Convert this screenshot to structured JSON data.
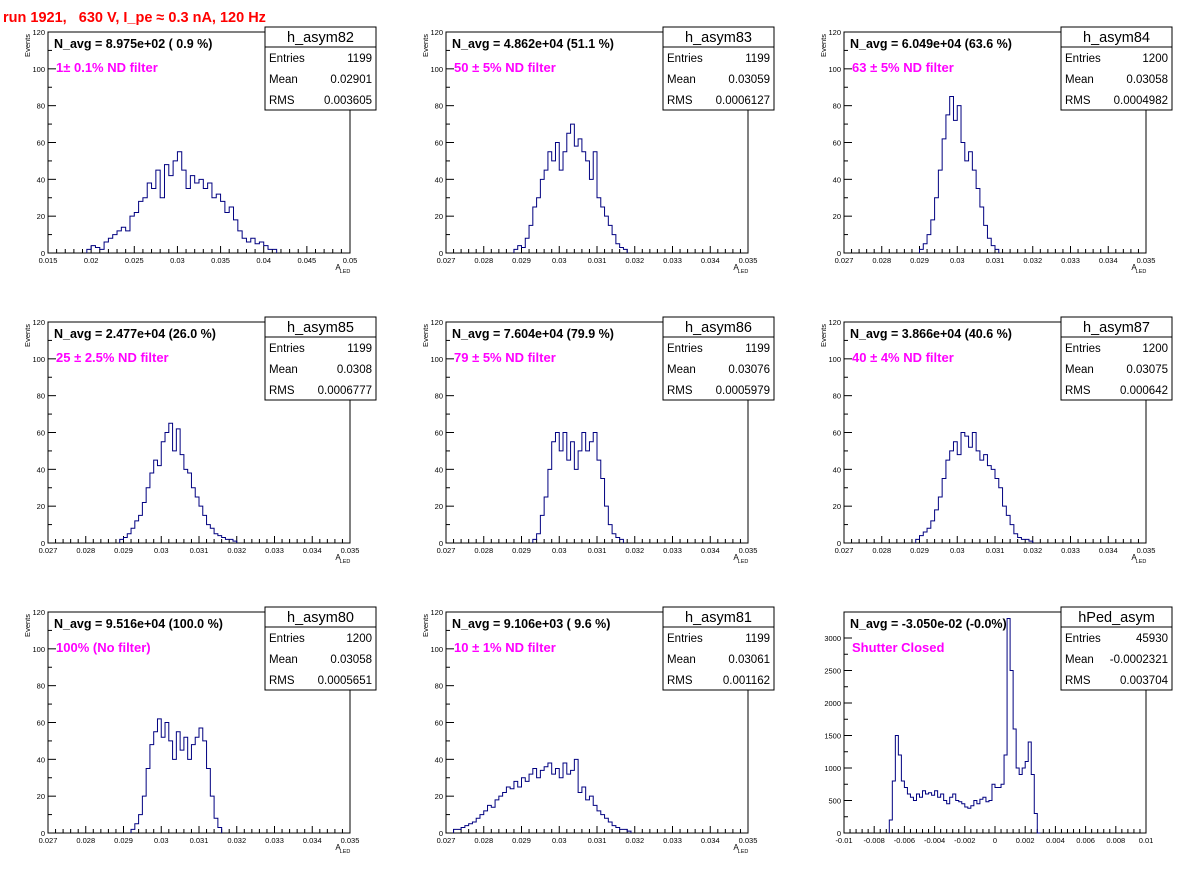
{
  "header": {
    "title": "run 1921,   630 V, I_pe ≈ 0.3 nA, 120 Hz"
  },
  "chart_data": [
    {
      "type": "bar",
      "name": "h_asym82",
      "nlabel": "N_avg = 8.975e+02 ( 0.9 %)",
      "filter": "1± 0.1% ND filter",
      "stats": [
        {
          "k": "Entries",
          "v": "1199"
        },
        {
          "k": "Mean",
          "v": "0.02901"
        },
        {
          "k": "RMS",
          "v": "0.003605"
        }
      ],
      "ylabel": "Events",
      "xlabel": "A",
      "xlabel_sub": "LED",
      "xlim": [
        0.015,
        0.05
      ],
      "ylim": [
        0,
        120
      ],
      "xticks": [
        0.015,
        0.02,
        0.025,
        0.03,
        0.035,
        0.04,
        0.045,
        0.05
      ],
      "xticklabels": [
        "0.015",
        "0.02",
        "0.025",
        "0.03",
        "0.035",
        "0.04",
        "0.045",
        "0.05"
      ],
      "yticks": [
        0,
        20,
        40,
        60,
        80,
        100,
        120
      ],
      "yticklabels": [
        "0",
        "20",
        "40",
        "60",
        "80",
        "100",
        "120"
      ],
      "bin_start": 0.0195,
      "bin_width": 0.0005,
      "values": [
        2,
        4,
        3,
        2,
        6,
        8,
        10,
        12,
        14,
        12,
        20,
        22,
        28,
        30,
        38,
        35,
        45,
        30,
        48,
        42,
        50,
        55,
        45,
        35,
        42,
        38,
        40,
        35,
        38,
        30,
        32,
        28,
        22,
        25,
        18,
        12,
        8,
        6,
        8,
        5,
        6,
        4,
        2,
        2
      ]
    },
    {
      "type": "bar",
      "name": "h_asym83",
      "nlabel": "N_avg = 4.862e+04 (51.1 %)",
      "filter": "50 ± 5% ND filter",
      "stats": [
        {
          "k": "Entries",
          "v": "1199"
        },
        {
          "k": "Mean",
          "v": "0.03059"
        },
        {
          "k": "RMS",
          "v": "0.0006127"
        }
      ],
      "ylabel": "Events",
      "xlabel": "A",
      "xlabel_sub": "LED",
      "xlim": [
        0.027,
        0.035
      ],
      "ylim": [
        0,
        120
      ],
      "xticks": [
        0.027,
        0.028,
        0.029,
        0.03,
        0.031,
        0.032,
        0.033,
        0.034,
        0.035
      ],
      "xticklabels": [
        "0.027",
        "0.028",
        "0.029",
        "0.03",
        "0.031",
        "0.032",
        "0.033",
        "0.034",
        "0.035"
      ],
      "yticks": [
        0,
        20,
        40,
        60,
        80,
        100,
        120
      ],
      "yticklabels": [
        "0",
        "20",
        "40",
        "60",
        "80",
        "100",
        "120"
      ],
      "bin_start": 0.0288,
      "bin_width": 0.0001,
      "values": [
        2,
        4,
        3,
        8,
        15,
        25,
        30,
        40,
        45,
        55,
        50,
        60,
        45,
        55,
        65,
        70,
        58,
        62,
        55,
        50,
        40,
        55,
        30,
        25,
        20,
        15,
        10,
        5,
        3,
        2
      ]
    },
    {
      "type": "bar",
      "name": "h_asym84",
      "nlabel": "N_avg = 6.049e+04 (63.6 %)",
      "filter": "63 ± 5% ND filter",
      "stats": [
        {
          "k": "Entries",
          "v": "1200"
        },
        {
          "k": "Mean",
          "v": "0.03058"
        },
        {
          "k": "RMS",
          "v": "0.0004982"
        }
      ],
      "ylabel": "Events",
      "xlabel": "A",
      "xlabel_sub": "LED",
      "xlim": [
        0.027,
        0.035
      ],
      "ylim": [
        0,
        120
      ],
      "xticks": [
        0.027,
        0.028,
        0.029,
        0.03,
        0.031,
        0.032,
        0.033,
        0.034,
        0.035
      ],
      "xticklabels": [
        "0.027",
        "0.028",
        "0.029",
        "0.03",
        "0.031",
        "0.032",
        "0.033",
        "0.034",
        "0.035"
      ],
      "yticks": [
        0,
        20,
        40,
        60,
        80,
        100,
        120
      ],
      "yticklabels": [
        "0",
        "20",
        "40",
        "60",
        "80",
        "100",
        "120"
      ],
      "bin_start": 0.029,
      "bin_width": 0.0001,
      "values": [
        2,
        5,
        10,
        18,
        30,
        45,
        62,
        75,
        85,
        72,
        80,
        60,
        50,
        55,
        45,
        35,
        25,
        15,
        8,
        4,
        2
      ]
    },
    {
      "type": "bar",
      "name": "h_asym85",
      "nlabel": "N_avg = 2.477e+04 (26.0 %)",
      "filter": "25 ± 2.5% ND filter",
      "stats": [
        {
          "k": "Entries",
          "v": "1199"
        },
        {
          "k": "Mean",
          "v": "0.0308"
        },
        {
          "k": "RMS",
          "v": "0.0006777"
        }
      ],
      "ylabel": "Events",
      "xlabel": "A",
      "xlabel_sub": "LED",
      "xlim": [
        0.027,
        0.035
      ],
      "ylim": [
        0,
        120
      ],
      "xticks": [
        0.027,
        0.028,
        0.029,
        0.03,
        0.031,
        0.032,
        0.033,
        0.034,
        0.035
      ],
      "xticklabels": [
        "0.027",
        "0.028",
        "0.029",
        "0.03",
        "0.031",
        "0.032",
        "0.033",
        "0.034",
        "0.035"
      ],
      "yticks": [
        0,
        20,
        40,
        60,
        80,
        100,
        120
      ],
      "yticklabels": [
        "0",
        "20",
        "40",
        "60",
        "80",
        "100",
        "120"
      ],
      "bin_start": 0.0289,
      "bin_width": 0.0001,
      "values": [
        2,
        3,
        5,
        8,
        12,
        15,
        22,
        30,
        38,
        45,
        42,
        55,
        60,
        65,
        50,
        62,
        48,
        40,
        38,
        30,
        25,
        20,
        15,
        10,
        8,
        5,
        4,
        3,
        2,
        2,
        1
      ]
    },
    {
      "type": "bar",
      "name": "h_asym86",
      "nlabel": "N_avg = 7.604e+04 (79.9 %)",
      "filter": "79 ± 5% ND filter",
      "stats": [
        {
          "k": "Entries",
          "v": "1199"
        },
        {
          "k": "Mean",
          "v": "0.03076"
        },
        {
          "k": "RMS",
          "v": "0.0005979"
        }
      ],
      "ylabel": "Events",
      "xlabel": "A",
      "xlabel_sub": "LED",
      "xlim": [
        0.027,
        0.035
      ],
      "ylim": [
        0,
        120
      ],
      "xticks": [
        0.027,
        0.028,
        0.029,
        0.03,
        0.031,
        0.032,
        0.033,
        0.034,
        0.035
      ],
      "xticklabels": [
        "0.027",
        "0.028",
        "0.029",
        "0.03",
        "0.031",
        "0.032",
        "0.033",
        "0.034",
        "0.035"
      ],
      "yticks": [
        0,
        20,
        40,
        60,
        80,
        100,
        120
      ],
      "yticklabels": [
        "0",
        "20",
        "40",
        "60",
        "80",
        "100",
        "120"
      ],
      "bin_start": 0.0293,
      "bin_width": 0.0001,
      "values": [
        2,
        5,
        15,
        25,
        40,
        55,
        60,
        50,
        60,
        45,
        55,
        40,
        50,
        60,
        50,
        55,
        60,
        45,
        35,
        20,
        10,
        5,
        3,
        2
      ]
    },
    {
      "type": "bar",
      "name": "h_asym87",
      "nlabel": "N_avg = 3.866e+04 (40.6 %)",
      "filter": "40 ± 4% ND filter",
      "stats": [
        {
          "k": "Entries",
          "v": "1200"
        },
        {
          "k": "Mean",
          "v": "0.03075"
        },
        {
          "k": "RMS",
          "v": "0.000642"
        }
      ],
      "ylabel": "Events",
      "xlabel": "A",
      "xlabel_sub": "LED",
      "xlim": [
        0.027,
        0.035
      ],
      "ylim": [
        0,
        120
      ],
      "xticks": [
        0.027,
        0.028,
        0.029,
        0.03,
        0.031,
        0.032,
        0.033,
        0.034,
        0.035
      ],
      "xticklabels": [
        "0.027",
        "0.028",
        "0.029",
        "0.03",
        "0.031",
        "0.032",
        "0.033",
        "0.034",
        "0.035"
      ],
      "yticks": [
        0,
        20,
        40,
        60,
        80,
        100,
        120
      ],
      "yticklabels": [
        "0",
        "20",
        "40",
        "60",
        "80",
        "100",
        "120"
      ],
      "bin_start": 0.0289,
      "bin_width": 0.0001,
      "values": [
        2,
        4,
        6,
        8,
        12,
        18,
        25,
        35,
        45,
        50,
        55,
        48,
        60,
        58,
        52,
        60,
        50,
        45,
        48,
        42,
        40,
        35,
        30,
        20,
        15,
        10,
        5,
        3,
        2,
        2,
        1
      ]
    },
    {
      "type": "bar",
      "name": "h_asym80",
      "nlabel": "N_avg = 9.516e+04 (100.0 %)",
      "filter": "100% (No filter)",
      "stats": [
        {
          "k": "Entries",
          "v": "1200"
        },
        {
          "k": "Mean",
          "v": "0.03058"
        },
        {
          "k": "RMS",
          "v": "0.0005651"
        }
      ],
      "ylabel": "Events",
      "xlabel": "A",
      "xlabel_sub": "LED",
      "xlim": [
        0.027,
        0.035
      ],
      "ylim": [
        0,
        120
      ],
      "xticks": [
        0.027,
        0.028,
        0.029,
        0.03,
        0.031,
        0.032,
        0.033,
        0.034,
        0.035
      ],
      "xticklabels": [
        "0.027",
        "0.028",
        "0.029",
        "0.03",
        "0.031",
        "0.032",
        "0.033",
        "0.034",
        "0.035"
      ],
      "yticks": [
        0,
        20,
        40,
        60,
        80,
        100,
        120
      ],
      "yticklabels": [
        "0",
        "20",
        "40",
        "60",
        "80",
        "100",
        "120"
      ],
      "bin_start": 0.0292,
      "bin_width": 0.0001,
      "values": [
        2,
        5,
        10,
        20,
        35,
        48,
        55,
        62,
        52,
        60,
        50,
        40,
        55,
        45,
        52,
        40,
        48,
        52,
        57,
        50,
        35,
        20,
        8,
        3
      ]
    },
    {
      "type": "bar",
      "name": "h_asym81",
      "nlabel": "N_avg = 9.106e+03 ( 9.6 %)",
      "filter": "10 ± 1% ND filter",
      "stats": [
        {
          "k": "Entries",
          "v": "1199"
        },
        {
          "k": "Mean",
          "v": "0.03061"
        },
        {
          "k": "RMS",
          "v": "0.001162"
        }
      ],
      "ylabel": "Events",
      "xlabel": "A",
      "xlabel_sub": "LED",
      "xlim": [
        0.027,
        0.035
      ],
      "ylim": [
        0,
        120
      ],
      "xticks": [
        0.027,
        0.028,
        0.029,
        0.03,
        0.031,
        0.032,
        0.033,
        0.034,
        0.035
      ],
      "xticklabels": [
        "0.027",
        "0.028",
        "0.029",
        "0.03",
        "0.031",
        "0.032",
        "0.033",
        "0.034",
        "0.035"
      ],
      "yticks": [
        0,
        20,
        40,
        60,
        80,
        100,
        120
      ],
      "yticklabels": [
        "0",
        "20",
        "40",
        "60",
        "80",
        "100",
        "120"
      ],
      "bin_start": 0.0272,
      "bin_width": 0.0001,
      "values": [
        2,
        2,
        3,
        4,
        5,
        6,
        8,
        10,
        12,
        15,
        14,
        18,
        20,
        22,
        25,
        24,
        28,
        25,
        30,
        28,
        32,
        35,
        30,
        34,
        36,
        38,
        32,
        35,
        30,
        38,
        32,
        34,
        40,
        22,
        25,
        18,
        20,
        15,
        12,
        10,
        8,
        6,
        4,
        3,
        2,
        2,
        1
      ]
    },
    {
      "type": "bar",
      "name": "hPed_asym",
      "nlabel": "N_avg = -3.050e-02 (-0.0%)",
      "filter": "Shutter Closed",
      "stats": [
        {
          "k": "Entries",
          "v": "45930"
        },
        {
          "k": "Mean",
          "v": "-0.0002321"
        },
        {
          "k": "RMS",
          "v": "0.003704"
        }
      ],
      "ylabel": "",
      "xlabel": "",
      "xlabel_sub": "",
      "xlim": [
        -0.01,
        0.01
      ],
      "ylim": [
        0,
        3400
      ],
      "xticks": [
        -0.01,
        -0.008,
        -0.006,
        -0.004,
        -0.002,
        0,
        0.002,
        0.004,
        0.006,
        0.008,
        0.01
      ],
      "xticklabels": [
        "-0.01",
        "-0.008",
        "-0.006",
        "-0.004",
        "-0.002",
        "0",
        "0.002",
        "0.004",
        "0.006",
        "0.008",
        "0.01"
      ],
      "yticks": [
        0,
        500,
        1000,
        1500,
        2000,
        2500,
        3000
      ],
      "yticklabels": [
        "0",
        "500",
        "1000",
        "1500",
        "2000",
        "2500",
        "3000"
      ],
      "bin_start": -0.007,
      "bin_width": 0.0002,
      "values": [
        200,
        800,
        1500,
        1200,
        800,
        700,
        600,
        550,
        500,
        600,
        550,
        650,
        600,
        620,
        580,
        650,
        550,
        600,
        500,
        450,
        550,
        600,
        500,
        480,
        450,
        400,
        380,
        420,
        500,
        450,
        520,
        550,
        480,
        500,
        750,
        700,
        700,
        750,
        1200,
        3300,
        2500,
        1600,
        1000,
        900,
        1000,
        1100,
        1400,
        900,
        300,
        0
      ]
    }
  ]
}
